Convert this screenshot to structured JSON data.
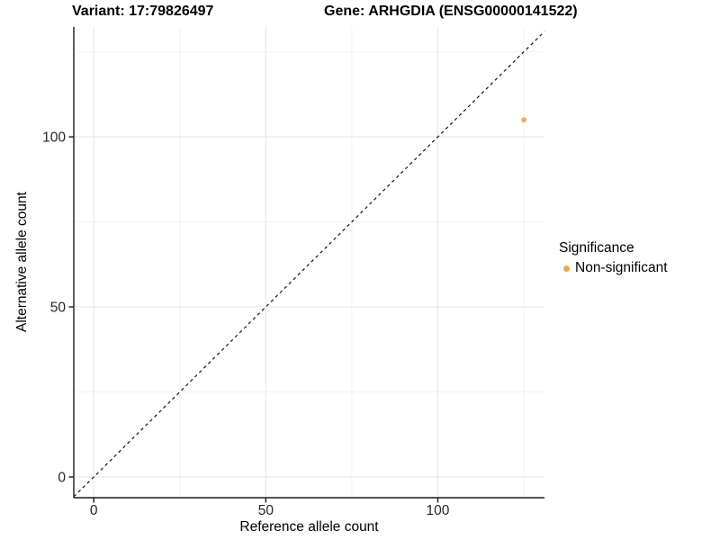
{
  "titles": {
    "variant": "Variant: 17:79826497",
    "gene": "Gene: ARHGDIA (ENSG00000141522)"
  },
  "axes": {
    "x_label": "Reference allele count",
    "y_label": "Alternative allele count"
  },
  "legend": {
    "title": "Significance",
    "position": "right",
    "entries": [
      {
        "label": "Non-significant",
        "color": "#F8A43F",
        "marker": "dot"
      }
    ]
  },
  "colors": {
    "background": "#FFFFFF",
    "point": "#F8A43F",
    "grid_major": "#E6E6E6",
    "grid_minor": "#F2F2F2",
    "axis_line": "#1A1A1A",
    "tick_text": "#262626",
    "dashed_line": "#111111",
    "title_text": "#000000"
  },
  "chart_data": {
    "type": "scatter",
    "title": "Variant: 17:79826497    Gene: ARHGDIA (ENSG00000141522)",
    "xlabel": "Reference allele count",
    "ylabel": "Alternative allele count",
    "xlim": [
      -5.8,
      131
    ],
    "ylim": [
      -6.1,
      132.3
    ],
    "x_major_ticks": [
      0,
      50,
      100
    ],
    "y_major_ticks": [
      0,
      50,
      100
    ],
    "x_minor_ticks": [
      25,
      75,
      125
    ],
    "y_minor_ticks": [
      25,
      75,
      125
    ],
    "grid": true,
    "legend_position": "right",
    "series": [
      {
        "name": "Non-significant",
        "color": "#F8A43F",
        "points": [
          {
            "x": 125,
            "y": 105
          }
        ]
      }
    ],
    "reference_line": {
      "equation": "y = x",
      "style": "dashed",
      "color": "#111111"
    }
  }
}
